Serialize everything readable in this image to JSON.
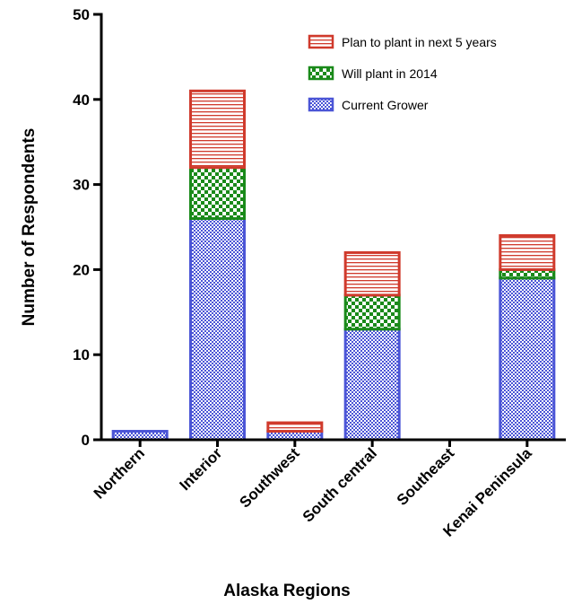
{
  "chart_data": {
    "type": "bar",
    "stacked": true,
    "categories": [
      "Northern",
      "Interior",
      "Southwest",
      "South central",
      "Southeast",
      "Kenai Peninsula"
    ],
    "series": [
      {
        "name": "Current Grower",
        "values": [
          1,
          26,
          1,
          13,
          0,
          19
        ],
        "color": "#4b55d6",
        "pattern": "checker"
      },
      {
        "name": "Will plant in 2014",
        "values": [
          0,
          6,
          0,
          4,
          0,
          1
        ],
        "color": "#1a8a1a",
        "pattern": "checker-bold"
      },
      {
        "name": "Plan to plant in next 5 years",
        "values": [
          0,
          9,
          1,
          5,
          0,
          4
        ],
        "color": "#d03a2c",
        "pattern": "horizontal-lines"
      }
    ],
    "xlabel": "Alaska Regions",
    "ylabel": "Number of Respondents",
    "ylim": [
      0,
      50
    ],
    "yticks": [
      0,
      10,
      20,
      30,
      40,
      50
    ],
    "grid": false,
    "legend_position": "top-right",
    "legend_order": [
      "Plan to plant in next 5 years",
      "Will plant in 2014",
      "Current Grower"
    ]
  }
}
